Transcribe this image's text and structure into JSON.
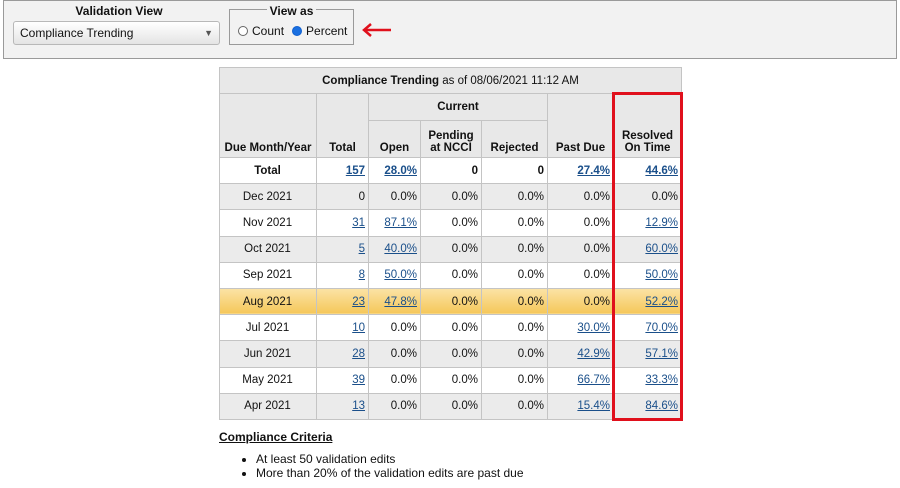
{
  "controls": {
    "validation_view_label": "Validation View",
    "validation_view_value": "Compliance Trending",
    "view_as_label": "View as",
    "radio_count_label": "Count",
    "radio_percent_label": "Percent",
    "selected": "Percent",
    "arrow_color": "#e0101c"
  },
  "table": {
    "title_bold": "Compliance Trending",
    "title_rest": " as of 08/06/2021 11:12 AM",
    "headers": {
      "due": "Due Month/Year",
      "total": "Total",
      "current": "Current",
      "open": "Open",
      "pending_line1": "Pending",
      "pending_line2": "at NCCI",
      "rejected": "Rejected",
      "past_due": "Past Due",
      "resolved_line1": "Resolved",
      "resolved_line2": "On Time"
    },
    "rows": [
      {
        "month": "Total",
        "total": "157",
        "open": "28.0%",
        "pending": "0",
        "rejected": "0",
        "past_due": "27.4%",
        "resolved": "44.6%"
      },
      {
        "month": "Dec 2021",
        "total": "0",
        "open": "0.0%",
        "pending": "0.0%",
        "rejected": "0.0%",
        "past_due": "0.0%",
        "resolved": "0.0%"
      },
      {
        "month": "Nov 2021",
        "total": "31",
        "open": "87.1%",
        "pending": "0.0%",
        "rejected": "0.0%",
        "past_due": "0.0%",
        "resolved": "12.9%"
      },
      {
        "month": "Oct 2021",
        "total": "5",
        "open": "40.0%",
        "pending": "0.0%",
        "rejected": "0.0%",
        "past_due": "0.0%",
        "resolved": "60.0%"
      },
      {
        "month": "Sep 2021",
        "total": "8",
        "open": "50.0%",
        "pending": "0.0%",
        "rejected": "0.0%",
        "past_due": "0.0%",
        "resolved": "50.0%"
      },
      {
        "month": "Aug 2021",
        "total": "23",
        "open": "47.8%",
        "pending": "0.0%",
        "rejected": "0.0%",
        "past_due": "0.0%",
        "resolved": "52.2%"
      },
      {
        "month": "Jul 2021",
        "total": "10",
        "open": "0.0%",
        "pending": "0.0%",
        "rejected": "0.0%",
        "past_due": "30.0%",
        "resolved": "70.0%"
      },
      {
        "month": "Jun 2021",
        "total": "28",
        "open": "0.0%",
        "pending": "0.0%",
        "rejected": "0.0%",
        "past_due": "42.9%",
        "resolved": "57.1%"
      },
      {
        "month": "May 2021",
        "total": "39",
        "open": "0.0%",
        "pending": "0.0%",
        "rejected": "0.0%",
        "past_due": "66.7%",
        "resolved": "33.3%"
      },
      {
        "month": "Apr 2021",
        "total": "13",
        "open": "0.0%",
        "pending": "0.0%",
        "rejected": "0.0%",
        "past_due": "15.4%",
        "resolved": "84.6%"
      }
    ],
    "highlight_color": "#f5c75a",
    "box_color": "#e0101c"
  },
  "criteria": {
    "title": "Compliance Criteria",
    "items": [
      "At least 50 validation edits",
      "More than 20% of the validation edits are past due"
    ]
  }
}
